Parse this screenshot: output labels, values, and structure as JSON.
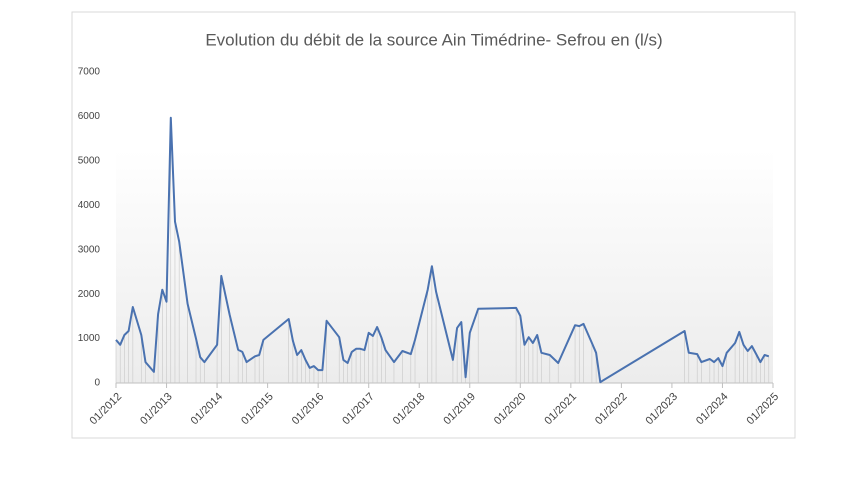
{
  "chart_data": {
    "type": "line",
    "title": "Evolution du débit de la source Ain Timédrine- Sefrou en (l/s)",
    "x": [
      "2012-01",
      "2012-02",
      "2012-03",
      "2012-04",
      "2012-05",
      "2012-07",
      "2012-08",
      "2012-10",
      "2012-11",
      "2012-12",
      "2013-01",
      "2013-02",
      "2013-03",
      "2013-04",
      "2013-06",
      "2013-08",
      "2013-09",
      "2013-10",
      "2014-01",
      "2014-02",
      "2014-04",
      "2014-06",
      "2014-07",
      "2014-08",
      "2014-10",
      "2014-11",
      "2014-12",
      "2015-06",
      "2015-07",
      "2015-08",
      "2015-09",
      "2015-10",
      "2015-11",
      "2015-12",
      "2016-01",
      "2016-02",
      "2016-03",
      "2016-06",
      "2016-07",
      "2016-08",
      "2016-09",
      "2016-10",
      "2016-11",
      "2016-12",
      "2017-01",
      "2017-02",
      "2017-03",
      "2017-04",
      "2017-05",
      "2017-07",
      "2017-09",
      "2017-11",
      "2017-12",
      "2018-03",
      "2018-04",
      "2018-05",
      "2018-09",
      "2018-10",
      "2018-11",
      "2018-12",
      "2019-01",
      "2019-03",
      "2019-12",
      "2020-01",
      "2020-02",
      "2020-03",
      "2020-04",
      "2020-05",
      "2020-06",
      "2020-08",
      "2020-10",
      "2021-02",
      "2021-03",
      "2021-04",
      "2021-06",
      "2021-07",
      "2021-08",
      "2023-04",
      "2023-05",
      "2023-07",
      "2023-08",
      "2023-10",
      "2023-11",
      "2023-12",
      "2024-01",
      "2024-02",
      "2024-04",
      "2024-05",
      "2024-06",
      "2024-07",
      "2024-08",
      "2024-09",
      "2024-10",
      "2024-11",
      "2024-12"
    ],
    "values": [
      970,
      860,
      1080,
      1170,
      1710,
      1080,
      470,
      250,
      1550,
      2100,
      1830,
      5970,
      3630,
      3180,
      1780,
      1000,
      580,
      470,
      860,
      2410,
      1530,
      750,
      700,
      470,
      600,
      630,
      970,
      1440,
      950,
      630,
      740,
      520,
      340,
      380,
      290,
      290,
      1400,
      1030,
      520,
      450,
      700,
      770,
      770,
      740,
      1130,
      1060,
      1260,
      1030,
      740,
      470,
      720,
      650,
      970,
      2100,
      2630,
      2050,
      520,
      1240,
      1370,
      130,
      1130,
      1670,
      1690,
      1510,
      860,
      1030,
      900,
      1080,
      680,
      630,
      450,
      1300,
      1280,
      1330,
      900,
      680,
      20,
      1170,
      680,
      650,
      470,
      540,
      470,
      560,
      380,
      680,
      900,
      1150,
      860,
      720,
      830,
      650,
      470,
      630,
      600
    ],
    "color": "#4a72b0",
    "drop_lines": true,
    "xlim": [
      "2012-01",
      "2025-01"
    ],
    "xticks": [
      {
        "value": "2012-01",
        "label": "01/2012"
      },
      {
        "value": "2013-01",
        "label": "01/2013"
      },
      {
        "value": "2014-01",
        "label": "01/2014"
      },
      {
        "value": "2015-01",
        "label": "01/2015"
      },
      {
        "value": "2016-01",
        "label": "01/2016"
      },
      {
        "value": "2017-01",
        "label": "01/2017"
      },
      {
        "value": "2018-01",
        "label": "01/2018"
      },
      {
        "value": "2019-01",
        "label": "01/2019"
      },
      {
        "value": "2020-01",
        "label": "01/2020"
      },
      {
        "value": "2021-01",
        "label": "01/2021"
      },
      {
        "value": "2022-01",
        "label": "01/2022"
      },
      {
        "value": "2023-01",
        "label": "01/2023"
      },
      {
        "value": "2024-01",
        "label": "01/2024"
      },
      {
        "value": "2025-01",
        "label": "01/2025"
      }
    ],
    "ylim": [
      0,
      7000
    ],
    "yticks": [
      0,
      1000,
      2000,
      3000,
      4000,
      5000,
      6000,
      7000
    ]
  }
}
